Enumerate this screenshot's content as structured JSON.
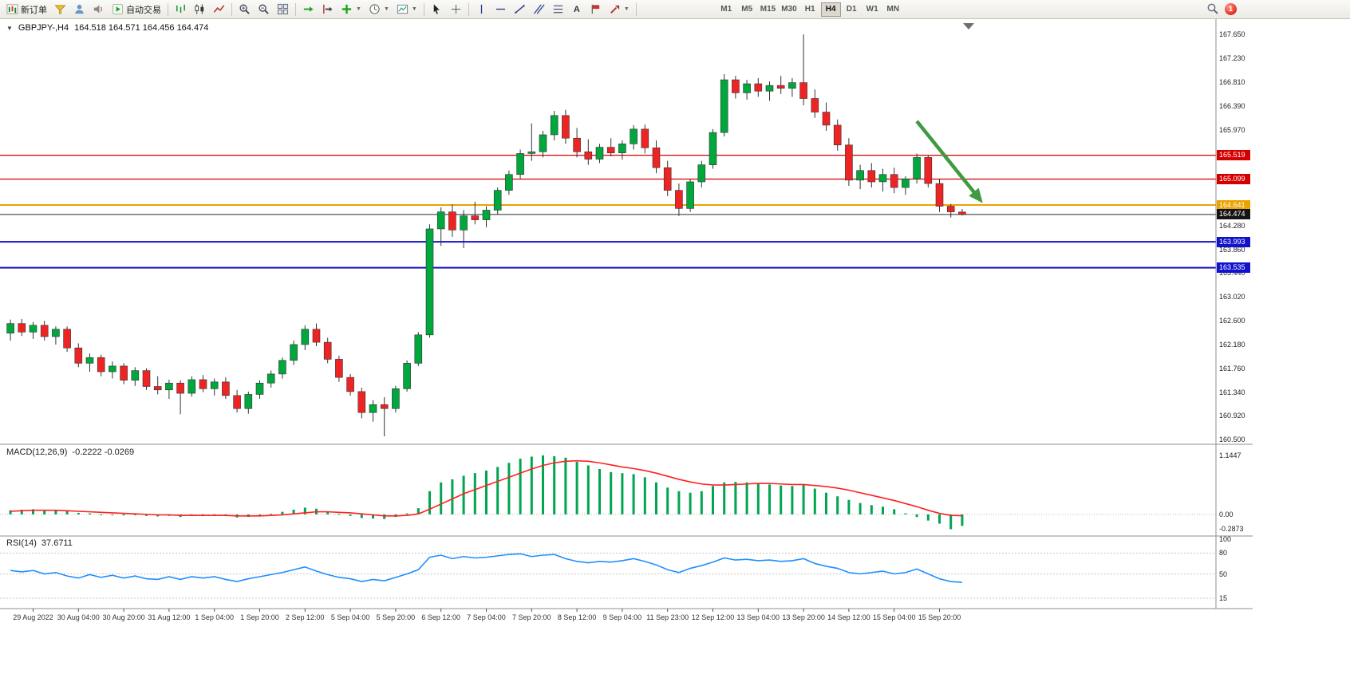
{
  "toolbar": {
    "new_order_label": "新订单",
    "auto_trading_label": "自动交易",
    "timeframes": [
      "M1",
      "M5",
      "M15",
      "M30",
      "H1",
      "H4",
      "D1",
      "W1",
      "MN"
    ],
    "active_timeframe": "H4",
    "notification_count": "1",
    "text_icon_a": "A",
    "icon_names": [
      "new-order-icon",
      "metaeditor-icon",
      "profiles-icon",
      "market-watch-icon",
      "autotrading-icon",
      "bar-chart-icon",
      "candlestick-chart-icon",
      "line-chart-icon",
      "zoom-in-icon",
      "zoom-out-icon",
      "tile-windows-icon",
      "auto-scroll-icon",
      "chart-shift-icon",
      "indicators-icon",
      "periods-icon",
      "templates-icon",
      "cursor-icon",
      "crosshair-icon",
      "vertical-line-icon",
      "horizontal-line-icon",
      "trendline-icon",
      "channel-icon",
      "fibonacci-icon",
      "text-icon",
      "text-label-icon",
      "arrows-icon",
      "search-icon",
      "notification-badge"
    ]
  },
  "chart": {
    "title": "GBPJPY-,H4",
    "ohlc": "164.518 164.571 164.456 164.474"
  },
  "chart_data": [
    {
      "type": "candlestick",
      "symbol": "GBPJPY-",
      "timeframe": "H4",
      "open": "164.518",
      "high": "164.571",
      "low": "164.456",
      "close": "164.474",
      "ylim": [
        160.42,
        167.92
      ],
      "y_ticks": [
        {
          "label": "167.650",
          "price": 167.65
        },
        {
          "label": "167.230",
          "price": 167.23
        },
        {
          "label": "166.810",
          "price": 166.81
        },
        {
          "label": "166.390",
          "price": 166.39
        },
        {
          "label": "165.970",
          "price": 165.97
        },
        {
          "label": "164.280",
          "price": 164.28
        },
        {
          "label": "163.860",
          "price": 163.86
        },
        {
          "label": "163.440",
          "price": 163.44
        },
        {
          "label": "163.020",
          "price": 163.02
        },
        {
          "label": "162.600",
          "price": 162.6
        },
        {
          "label": "162.180",
          "price": 162.18
        },
        {
          "label": "161.760",
          "price": 161.76
        },
        {
          "label": "161.340",
          "price": 161.34
        },
        {
          "label": "160.920",
          "price": 160.92
        },
        {
          "label": "160.500",
          "price": 160.5
        }
      ],
      "hlines": [
        {
          "price": 165.519,
          "label": "165.519",
          "color": "#d40000",
          "width": 1.2
        },
        {
          "price": 165.099,
          "label": "165.099",
          "color": "#d40000",
          "width": 1.2
        },
        {
          "price": 164.641,
          "label": "164.641",
          "color": "#eca200",
          "width": 2
        },
        {
          "price": 163.993,
          "label": "163.993",
          "color": "#1212cc",
          "width": 2
        },
        {
          "price": 163.535,
          "label": "163.535",
          "color": "#1212cc",
          "width": 2
        }
      ],
      "current_price": {
        "price": 164.474,
        "label": "164.474",
        "color": "#2a2a2a"
      },
      "arrow_annotation": {
        "from_bar": 80,
        "from_price": 166.12,
        "to_bar": 85.6,
        "to_price": 164.73,
        "color": "#3f9b41"
      },
      "x_label_bars": [
        2,
        6,
        10,
        14,
        18,
        22,
        26,
        30,
        34,
        38,
        42,
        46,
        50,
        54,
        58,
        62,
        66,
        70,
        74,
        78,
        82
      ],
      "x_labels": [
        "29 Aug 2022",
        "30 Aug 04:00",
        "30 Aug 20:00",
        "31 Aug 12:00",
        "1 Sep 04:00",
        "1 Sep 20:00",
        "2 Sep 12:00",
        "5 Sep 04:00",
        "5 Sep 20:00",
        "6 Sep 12:00",
        "7 Sep 04:00",
        "7 Sep 20:00",
        "8 Sep 12:00",
        "9 Sep 04:00",
        "11 Sep 23:00",
        "12 Sep 12:00",
        "13 Sep 04:00",
        "13 Sep 20:00",
        "14 Sep 12:00",
        "15 Sep 04:00",
        "15 Sep 20:00"
      ],
      "candles": [
        [
          162.38,
          162.62,
          162.25,
          162.55
        ],
        [
          162.55,
          162.63,
          162.33,
          162.4
        ],
        [
          162.4,
          162.58,
          162.28,
          162.52
        ],
        [
          162.52,
          162.6,
          162.25,
          162.32
        ],
        [
          162.32,
          162.5,
          162.18,
          162.45
        ],
        [
          162.45,
          162.5,
          162.05,
          162.12
        ],
        [
          162.12,
          162.2,
          161.78,
          161.85
        ],
        [
          161.85,
          162.02,
          161.7,
          161.95
        ],
        [
          161.95,
          162.0,
          161.62,
          161.7
        ],
        [
          161.7,
          161.88,
          161.58,
          161.8
        ],
        [
          161.8,
          161.85,
          161.48,
          161.55
        ],
        [
          161.55,
          161.78,
          161.45,
          161.72
        ],
        [
          161.72,
          161.76,
          161.38,
          161.44
        ],
        [
          161.44,
          161.62,
          161.3,
          161.38
        ],
        [
          161.38,
          161.56,
          161.22,
          161.5
        ],
        [
          161.5,
          161.55,
          160.95,
          161.32
        ],
        [
          161.32,
          161.62,
          161.26,
          161.56
        ],
        [
          161.56,
          161.64,
          161.34,
          161.4
        ],
        [
          161.4,
          161.58,
          161.28,
          161.52
        ],
        [
          161.52,
          161.6,
          161.22,
          161.28
        ],
        [
          161.28,
          161.38,
          160.98,
          161.05
        ],
        [
          161.05,
          161.35,
          160.96,
          161.3
        ],
        [
          161.3,
          161.55,
          161.22,
          161.5
        ],
        [
          161.5,
          161.72,
          161.42,
          161.66
        ],
        [
          161.66,
          161.95,
          161.58,
          161.9
        ],
        [
          161.9,
          162.25,
          161.82,
          162.18
        ],
        [
          162.18,
          162.52,
          162.08,
          162.45
        ],
        [
          162.45,
          162.55,
          162.15,
          162.22
        ],
        [
          162.22,
          162.3,
          161.85,
          161.92
        ],
        [
          161.92,
          161.98,
          161.52,
          161.6
        ],
        [
          161.6,
          161.66,
          161.28,
          161.35
        ],
        [
          161.35,
          161.42,
          160.88,
          160.98
        ],
        [
          160.98,
          161.2,
          160.82,
          161.12
        ],
        [
          161.12,
          161.25,
          160.56,
          161.05
        ],
        [
          161.05,
          161.45,
          160.98,
          161.4
        ],
        [
          161.4,
          161.9,
          161.35,
          161.85
        ],
        [
          161.85,
          162.4,
          161.8,
          162.35
        ],
        [
          162.35,
          164.3,
          162.3,
          164.22
        ],
        [
          164.22,
          164.6,
          163.92,
          164.52
        ],
        [
          164.52,
          164.65,
          164.08,
          164.2
        ],
        [
          164.2,
          164.55,
          163.88,
          164.45
        ],
        [
          164.45,
          164.7,
          164.3,
          164.38
        ],
        [
          164.38,
          164.62,
          164.25,
          164.55
        ],
        [
          164.55,
          164.95,
          164.48,
          164.9
        ],
        [
          164.9,
          165.25,
          164.82,
          165.18
        ],
        [
          165.18,
          165.62,
          165.1,
          165.55
        ],
        [
          165.55,
          166.08,
          165.42,
          165.58
        ],
        [
          165.58,
          165.95,
          165.48,
          165.88
        ],
        [
          165.88,
          166.3,
          165.78,
          166.22
        ],
        [
          166.22,
          166.32,
          165.72,
          165.82
        ],
        [
          165.82,
          166.0,
          165.48,
          165.58
        ],
        [
          165.58,
          165.8,
          165.35,
          165.45
        ],
        [
          165.45,
          165.72,
          165.38,
          165.66
        ],
        [
          165.66,
          165.82,
          165.5,
          165.56
        ],
        [
          165.56,
          165.78,
          165.44,
          165.72
        ],
        [
          165.72,
          166.05,
          165.62,
          165.98
        ],
        [
          165.98,
          166.06,
          165.55,
          165.65
        ],
        [
          165.65,
          165.78,
          165.2,
          165.3
        ],
        [
          165.3,
          165.42,
          164.8,
          164.9
        ],
        [
          164.9,
          165.02,
          164.45,
          164.58
        ],
        [
          164.58,
          165.1,
          164.52,
          165.05
        ],
        [
          165.05,
          165.42,
          164.95,
          165.35
        ],
        [
          165.35,
          165.98,
          165.28,
          165.92
        ],
        [
          165.92,
          166.95,
          165.85,
          166.85
        ],
        [
          166.85,
          166.92,
          166.52,
          166.62
        ],
        [
          166.62,
          166.85,
          166.5,
          166.78
        ],
        [
          166.78,
          166.88,
          166.55,
          166.65
        ],
        [
          166.65,
          166.82,
          166.48,
          166.75
        ],
        [
          166.75,
          166.92,
          166.6,
          166.7
        ],
        [
          166.7,
          166.88,
          166.55,
          166.8
        ],
        [
          166.8,
          167.65,
          166.4,
          166.52
        ],
        [
          166.52,
          166.68,
          166.18,
          166.28
        ],
        [
          166.28,
          166.45,
          165.95,
          166.05
        ],
        [
          166.05,
          166.15,
          165.6,
          165.7
        ],
        [
          165.7,
          165.82,
          164.98,
          165.08
        ],
        [
          165.08,
          165.35,
          164.92,
          165.25
        ],
        [
          165.25,
          165.38,
          164.95,
          165.05
        ],
        [
          165.05,
          165.28,
          164.88,
          165.18
        ],
        [
          165.18,
          165.3,
          164.85,
          164.95
        ],
        [
          164.95,
          165.15,
          164.82,
          165.1
        ],
        [
          165.1,
          165.55,
          165.02,
          165.48
        ],
        [
          165.48,
          165.52,
          164.95,
          165.02
        ],
        [
          165.02,
          165.1,
          164.52,
          164.62
        ],
        [
          164.62,
          164.66,
          164.42,
          164.52
        ],
        [
          164.518,
          164.571,
          164.456,
          164.474
        ]
      ]
    },
    {
      "type": "bar",
      "name": "MACD",
      "label": "MACD(12,26,9)",
      "values_label": "-0.2222 -0.0269",
      "ylim": [
        -0.42,
        1.36
      ],
      "y_ticks": [
        {
          "label": "1.1447",
          "value": 1.1447
        },
        {
          "label": "0.00",
          "value": 0
        },
        {
          "label": "-0.2873",
          "value": -0.2873
        }
      ],
      "histogram_color": "#00a550",
      "signal_color": "#ff2020",
      "histogram": [
        0.08,
        0.09,
        0.1,
        0.09,
        0.08,
        0.06,
        0.03,
        0.02,
        0.0,
        -0.01,
        -0.02,
        -0.01,
        -0.03,
        -0.04,
        -0.03,
        -0.05,
        -0.03,
        -0.03,
        -0.02,
        -0.03,
        -0.06,
        -0.05,
        -0.02,
        0.01,
        0.05,
        0.09,
        0.13,
        0.11,
        0.06,
        0.01,
        -0.03,
        -0.07,
        -0.08,
        -0.09,
        -0.05,
        0.02,
        0.12,
        0.45,
        0.62,
        0.68,
        0.75,
        0.8,
        0.85,
        0.92,
        1.0,
        1.08,
        1.12,
        1.1447,
        1.13,
        1.1,
        1.02,
        0.95,
        0.88,
        0.82,
        0.8,
        0.78,
        0.72,
        0.62,
        0.52,
        0.45,
        0.42,
        0.45,
        0.55,
        0.62,
        0.63,
        0.62,
        0.6,
        0.58,
        0.56,
        0.55,
        0.58,
        0.5,
        0.42,
        0.35,
        0.28,
        0.22,
        0.18,
        0.15,
        0.1,
        0.02,
        -0.05,
        -0.12,
        -0.18,
        -0.2873,
        -0.2222
      ],
      "signal": [
        0.06,
        0.07,
        0.08,
        0.08,
        0.08,
        0.07,
        0.06,
        0.05,
        0.04,
        0.03,
        0.02,
        0.01,
        0.0,
        -0.01,
        -0.01,
        -0.02,
        -0.02,
        -0.02,
        -0.02,
        -0.02,
        -0.03,
        -0.03,
        -0.03,
        -0.02,
        -0.01,
        0.01,
        0.03,
        0.05,
        0.05,
        0.04,
        0.03,
        0.01,
        -0.01,
        -0.03,
        -0.03,
        -0.02,
        0.01,
        0.1,
        0.2,
        0.3,
        0.4,
        0.48,
        0.56,
        0.64,
        0.72,
        0.8,
        0.88,
        0.95,
        1.0,
        1.03,
        1.04,
        1.03,
        1.0,
        0.96,
        0.92,
        0.89,
        0.85,
        0.8,
        0.74,
        0.68,
        0.63,
        0.59,
        0.57,
        0.57,
        0.58,
        0.59,
        0.6,
        0.6,
        0.59,
        0.58,
        0.58,
        0.56,
        0.54,
        0.51,
        0.47,
        0.42,
        0.37,
        0.32,
        0.27,
        0.21,
        0.15,
        0.08,
        0.02,
        -0.02,
        -0.0269
      ]
    },
    {
      "type": "line",
      "name": "RSI",
      "label": "RSI(14)",
      "value_label": "37.6711",
      "ylim": [
        0,
        100
      ],
      "levels": [
        80,
        50,
        15
      ],
      "y_ticks": [
        {
          "label": "100",
          "value": 100
        },
        {
          "label": "80",
          "value": 80
        },
        {
          "label": "50",
          "value": 50
        },
        {
          "label": "15",
          "value": 15
        }
      ],
      "line_color": "#1f8fff",
      "values": [
        55,
        53,
        55,
        50,
        52,
        47,
        44,
        49,
        45,
        48,
        44,
        47,
        43,
        42,
        46,
        42,
        46,
        44,
        46,
        42,
        39,
        43,
        46,
        49,
        52,
        56,
        60,
        54,
        49,
        45,
        43,
        39,
        42,
        40,
        45,
        50,
        56,
        74,
        77,
        72,
        75,
        73,
        74,
        76,
        78,
        79,
        75,
        77,
        78,
        72,
        68,
        66,
        68,
        67,
        69,
        72,
        68,
        63,
        56,
        52,
        58,
        62,
        67,
        73,
        70,
        71,
        69,
        70,
        68,
        69,
        72,
        65,
        61,
        58,
        52,
        50,
        52,
        54,
        50,
        52,
        57,
        50,
        43,
        39,
        37.67
      ]
    }
  ]
}
